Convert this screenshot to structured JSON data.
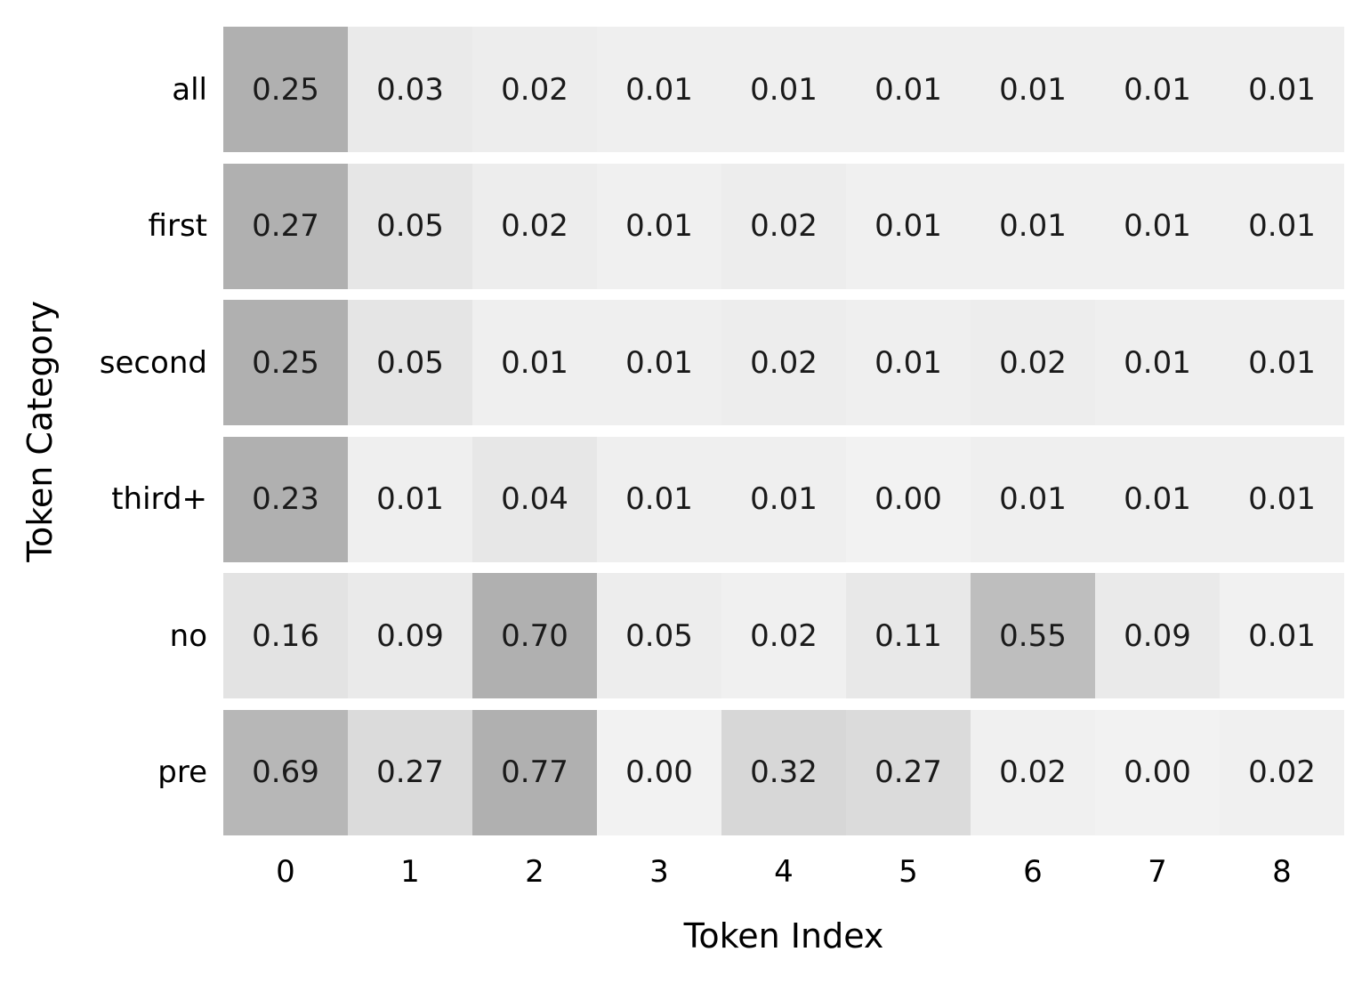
{
  "chart_data": {
    "type": "heatmap",
    "title": "",
    "xlabel": "Token Index",
    "ylabel": "Token Category",
    "x_ticklabels": [
      "0",
      "1",
      "2",
      "3",
      "4",
      "5",
      "6",
      "7",
      "8"
    ],
    "categories": [
      "all",
      "first",
      "second",
      "third+",
      "no",
      "pre"
    ],
    "series": [
      {
        "name": "all",
        "values": [
          0.25,
          0.03,
          0.02,
          0.01,
          0.01,
          0.01,
          0.01,
          0.01,
          0.01
        ]
      },
      {
        "name": "first",
        "values": [
          0.27,
          0.05,
          0.02,
          0.01,
          0.02,
          0.01,
          0.01,
          0.01,
          0.01
        ]
      },
      {
        "name": "second",
        "values": [
          0.25,
          0.05,
          0.01,
          0.01,
          0.02,
          0.01,
          0.02,
          0.01,
          0.01
        ]
      },
      {
        "name": "third+",
        "values": [
          0.23,
          0.01,
          0.04,
          0.01,
          0.01,
          0.0,
          0.01,
          0.01,
          0.01
        ]
      },
      {
        "name": "no",
        "values": [
          0.16,
          0.09,
          0.7,
          0.05,
          0.02,
          0.11,
          0.55,
          0.09,
          0.01
        ]
      },
      {
        "name": "pre",
        "values": [
          0.69,
          0.27,
          0.77,
          0.0,
          0.32,
          0.27,
          0.02,
          0.0,
          0.02
        ]
      }
    ],
    "value_format": "%.2f",
    "annotations_on": true,
    "legend": "none",
    "grid": false,
    "colormap": {
      "min_color": "#f2f2f2",
      "max_color": "#b0b0b0",
      "normalization": "per-row-max"
    }
  },
  "colors": {
    "background": "#ffffff",
    "annotation_text": "#1a1a1a",
    "axis_text": "#000000",
    "row_gap": "#ffffff"
  }
}
